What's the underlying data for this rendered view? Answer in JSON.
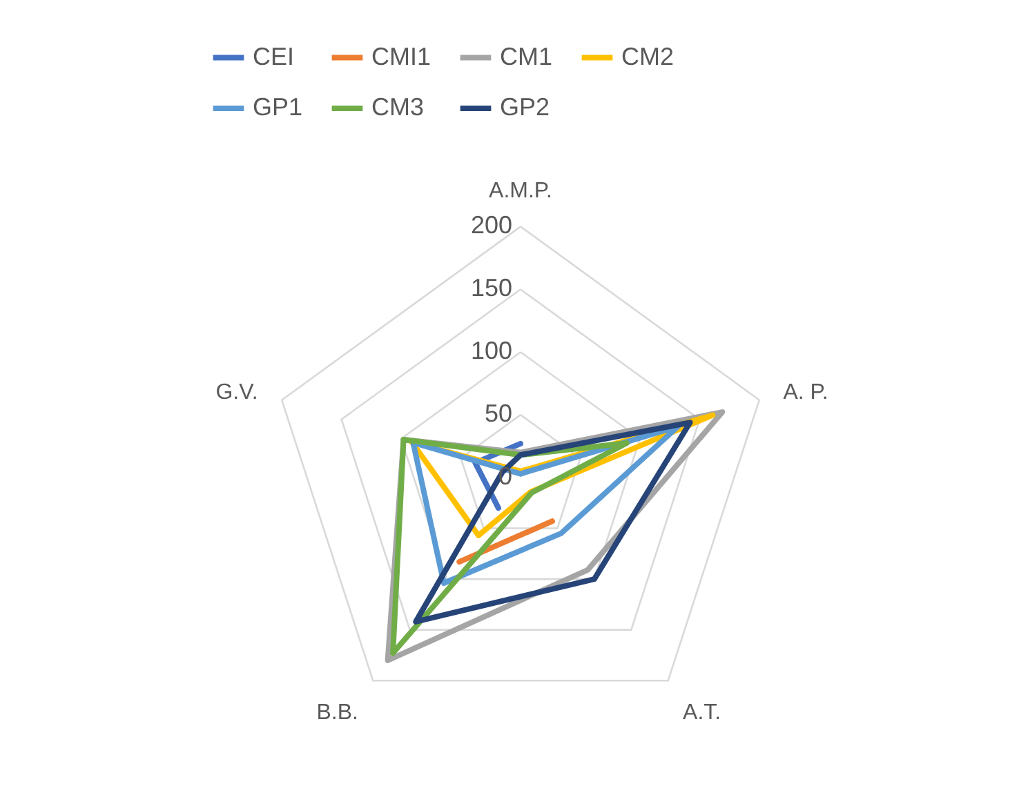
{
  "chart_data": {
    "type": "radar",
    "categories": [
      "A.M.P.",
      "A. P.",
      "A.T.",
      "B.B.",
      "G.V."
    ],
    "series": [
      {
        "name": "CEI",
        "color": "#4472c4",
        "values": [
          27,
          null,
          null,
          30,
          38
        ]
      },
      {
        "name": "CMI1",
        "color": "#ed7d31",
        "values": [
          null,
          null,
          43,
          83,
          null
        ]
      },
      {
        "name": "CM1",
        "color": "#a5a5a5",
        "values": [
          20,
          169,
          91,
          180,
          98
        ]
      },
      {
        "name": "CM2",
        "color": "#ffc000",
        "values": [
          5,
          161,
          14,
          57,
          91
        ]
      },
      {
        "name": "GP1",
        "color": "#5b9bd5",
        "values": [
          3,
          132,
          55,
          104,
          90
        ]
      },
      {
        "name": "CM3",
        "color": "#70ad47",
        "values": [
          18,
          89,
          15,
          173,
          98
        ]
      },
      {
        "name": "GP2",
        "color": "#264478",
        "values": [
          18,
          142,
          100,
          142,
          15
        ]
      }
    ],
    "ylim": [
      0,
      200
    ],
    "yticks": [
      0,
      50,
      100,
      150,
      200
    ],
    "grid": true,
    "legend": "top"
  }
}
